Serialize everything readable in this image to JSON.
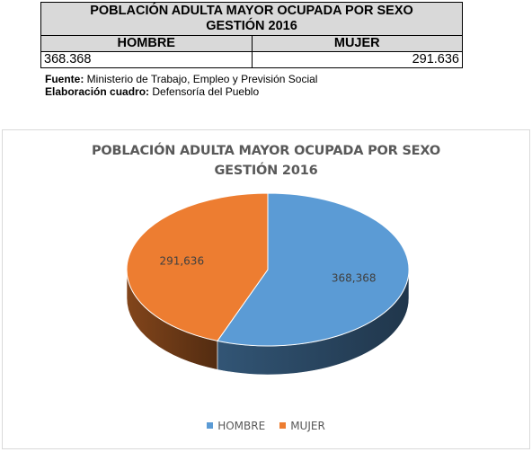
{
  "table": {
    "title_line1": "POBLACIÓN ADULTA MAYOR OCUPADA POR SEXO",
    "title_line2": "GESTIÓN 2016",
    "headers": [
      "HOMBRE",
      "MUJER"
    ],
    "values": [
      "368.368",
      "291.636"
    ]
  },
  "notes": {
    "source_label": "Fuente:",
    "source_text": " Ministerio de Trabajo, Empleo y Previsión Social",
    "prepared_label": "Elaboración cuadro:",
    "prepared_text": " Defensoría del Pueblo"
  },
  "chart_data": {
    "type": "pie",
    "title": "POBLACIÓN ADULTA MAYOR OCUPADA POR SEXO",
    "subtitle": "GESTIÓN 2016",
    "categories": [
      "HOMBRE",
      "MUJER"
    ],
    "values": [
      368368,
      291636
    ],
    "data_labels": [
      "368,368",
      "291,636"
    ],
    "colors": [
      "#5b9bd5",
      "#ed7d31"
    ],
    "three_d": true,
    "legend_position": "bottom"
  }
}
